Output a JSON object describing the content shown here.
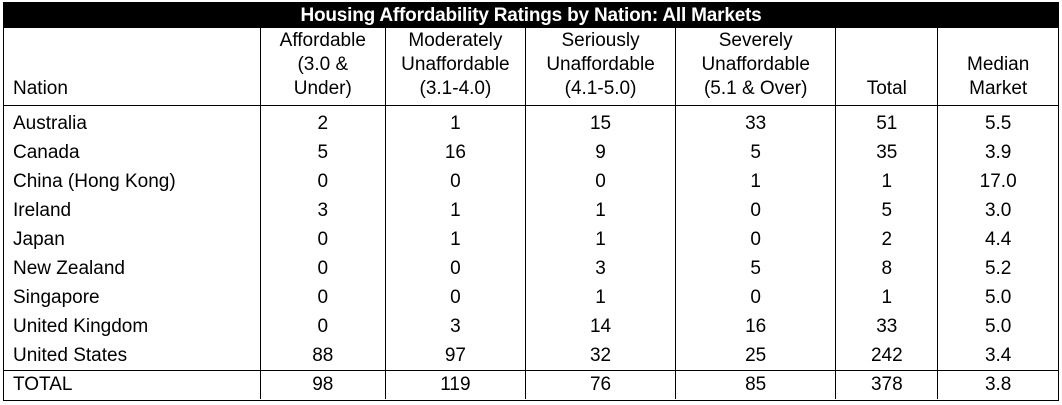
{
  "title": "Housing Affordability Ratings by Nation: All Markets",
  "headers": [
    {
      "lines": [
        "Nation"
      ]
    },
    {
      "lines": [
        "Affordable",
        "(3.0 &",
        "Under)"
      ]
    },
    {
      "lines": [
        "Moderately",
        "Unaffordable",
        "(3.1-4.0)"
      ]
    },
    {
      "lines": [
        "Seriously",
        "Unaffordable",
        "(4.1-5.0)"
      ]
    },
    {
      "lines": [
        "Severely",
        "Unaffordable",
        "(5.1 & Over)"
      ]
    },
    {
      "lines": [
        "Total"
      ]
    },
    {
      "lines": [
        "Median",
        "Market"
      ]
    }
  ],
  "rows": [
    [
      "Australia",
      "2",
      "1",
      "15",
      "33",
      "51",
      "5.5"
    ],
    [
      "Canada",
      "5",
      "16",
      "9",
      "5",
      "35",
      "3.9"
    ],
    [
      "China (Hong Kong)",
      "0",
      "0",
      "0",
      "1",
      "1",
      "17.0"
    ],
    [
      "Ireland",
      "3",
      "1",
      "1",
      "0",
      "5",
      "3.0"
    ],
    [
      "Japan",
      "0",
      "1",
      "1",
      "0",
      "2",
      "4.4"
    ],
    [
      "New Zealand",
      "0",
      "0",
      "3",
      "5",
      "8",
      "5.2"
    ],
    [
      "Singapore",
      "0",
      "0",
      "1",
      "0",
      "1",
      "5.0"
    ],
    [
      "United Kingdom",
      "0",
      "3",
      "14",
      "16",
      "33",
      "5.0"
    ],
    [
      "United States",
      "88",
      "97",
      "32",
      "25",
      "242",
      "3.4"
    ]
  ],
  "total_row": [
    "TOTAL",
    "98",
    "119",
    "76",
    "85",
    "378",
    "3.8"
  ]
}
